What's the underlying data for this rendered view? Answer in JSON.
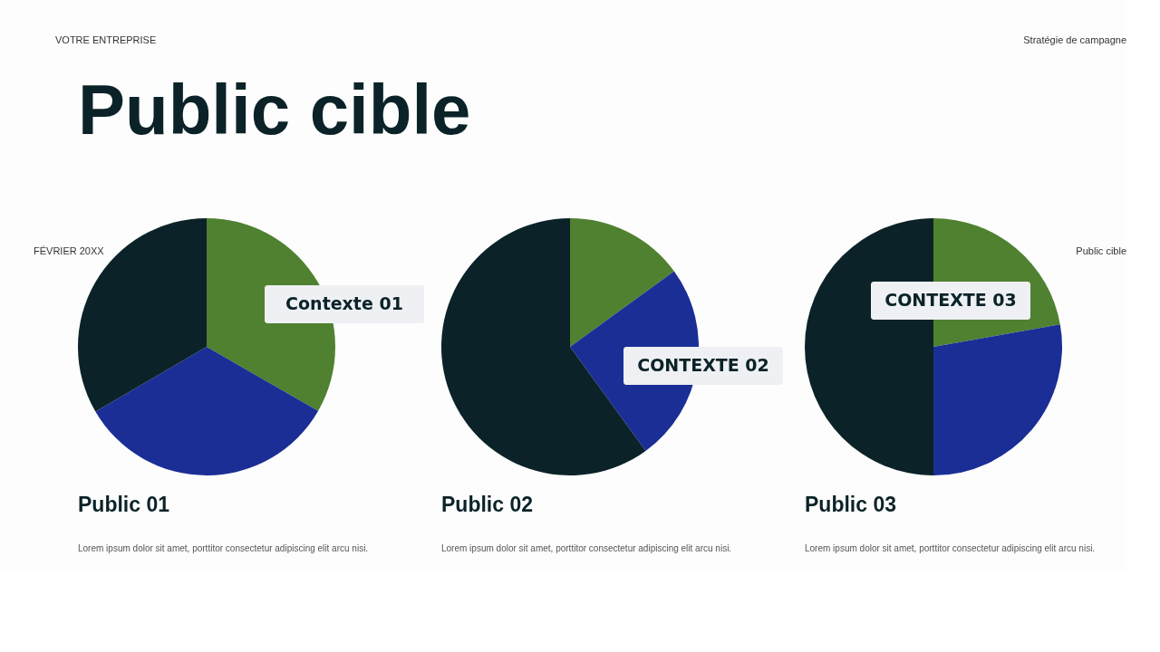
{
  "chart_data": [
    {
      "type": "other",
      "title": "Public cible",
      "annotations": [
        "VOTRE ENTREPRISE",
        "Stratégie de campagne",
        "FÉVRIER 20XX",
        "Public cible"
      ]
    },
    {
      "type": "pie",
      "title": "Public 01",
      "categories": [
        null,
        null,
        null
      ],
      "values": [
        33.3,
        33.3,
        33.4
      ],
      "colors": [
        "#4f8130",
        "#1a2e96",
        "#0b2328"
      ],
      "annotations": [
        "Contexte 01",
        "Lorem ipsum dolor sit amet, porttitor consectetur adipiscing elit arcu nisi."
      ]
    },
    {
      "type": "pie",
      "title": "Public 02",
      "categories": [
        null,
        null,
        null
      ],
      "values": [
        15,
        25,
        60
      ],
      "colors": [
        "#4f8130",
        "#1a2e96",
        "#0b2328"
      ],
      "annotations": [
        "CONTEXTE 02",
        "Lorem ipsum dolor sit amet, porttitor consectetur adipiscing elit arcu nisi."
      ]
    },
    {
      "type": "pie",
      "title": "Public 03",
      "categories": [
        null,
        null,
        null
      ],
      "values": [
        22.2,
        27.8,
        50
      ],
      "colors": [
        "#4f8130",
        "#1a2e96",
        "#0b2328"
      ],
      "annotations": [
        "CONTEXTE 03",
        "Lorem ipsum dolor sit amet, porttitor consectetur adipiscing elit arcu nisi."
      ]
    }
  ]
}
